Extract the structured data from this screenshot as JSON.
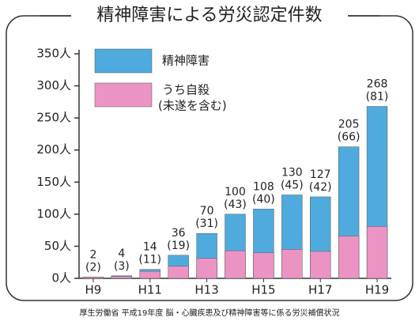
{
  "chart_data": {
    "type": "bar",
    "title": "精神障害による労災認定件数",
    "categories": [
      "H9",
      null,
      "H11",
      null,
      "H13",
      null,
      "H15",
      null,
      "H17",
      null,
      "H19"
    ],
    "series": [
      {
        "name": "精神障害",
        "color": "#4fabdd",
        "values": [
          2,
          4,
          14,
          36,
          70,
          100,
          108,
          130,
          127,
          205,
          268
        ]
      },
      {
        "name": "うち自殺",
        "note": "(未遂を含む)",
        "color": "#eb94c4",
        "values": [
          2,
          3,
          11,
          19,
          31,
          43,
          40,
          45,
          42,
          66,
          81
        ],
        "value_labels": [
          "(2)",
          "(3)",
          "(11)",
          "(19)",
          "(31)",
          "(43)",
          "(40)",
          "(45)",
          "(42)",
          "(66)",
          "(81)"
        ]
      }
    ],
    "ylim": [
      0,
      350
    ],
    "yticks": [
      {
        "value": 0,
        "label": "0人"
      },
      {
        "value": 50,
        "label": "50人"
      },
      {
        "value": 100,
        "label": "100人"
      },
      {
        "value": 150,
        "label": "150人"
      },
      {
        "value": 200,
        "label": "200人"
      },
      {
        "value": 250,
        "label": "250人"
      },
      {
        "value": 300,
        "label": "300人"
      },
      {
        "value": 350,
        "label": "350人"
      }
    ],
    "source": "厚生労働省 平成19年度 脳・心臓疾患及び精神障害等に係る労災補償状況"
  }
}
